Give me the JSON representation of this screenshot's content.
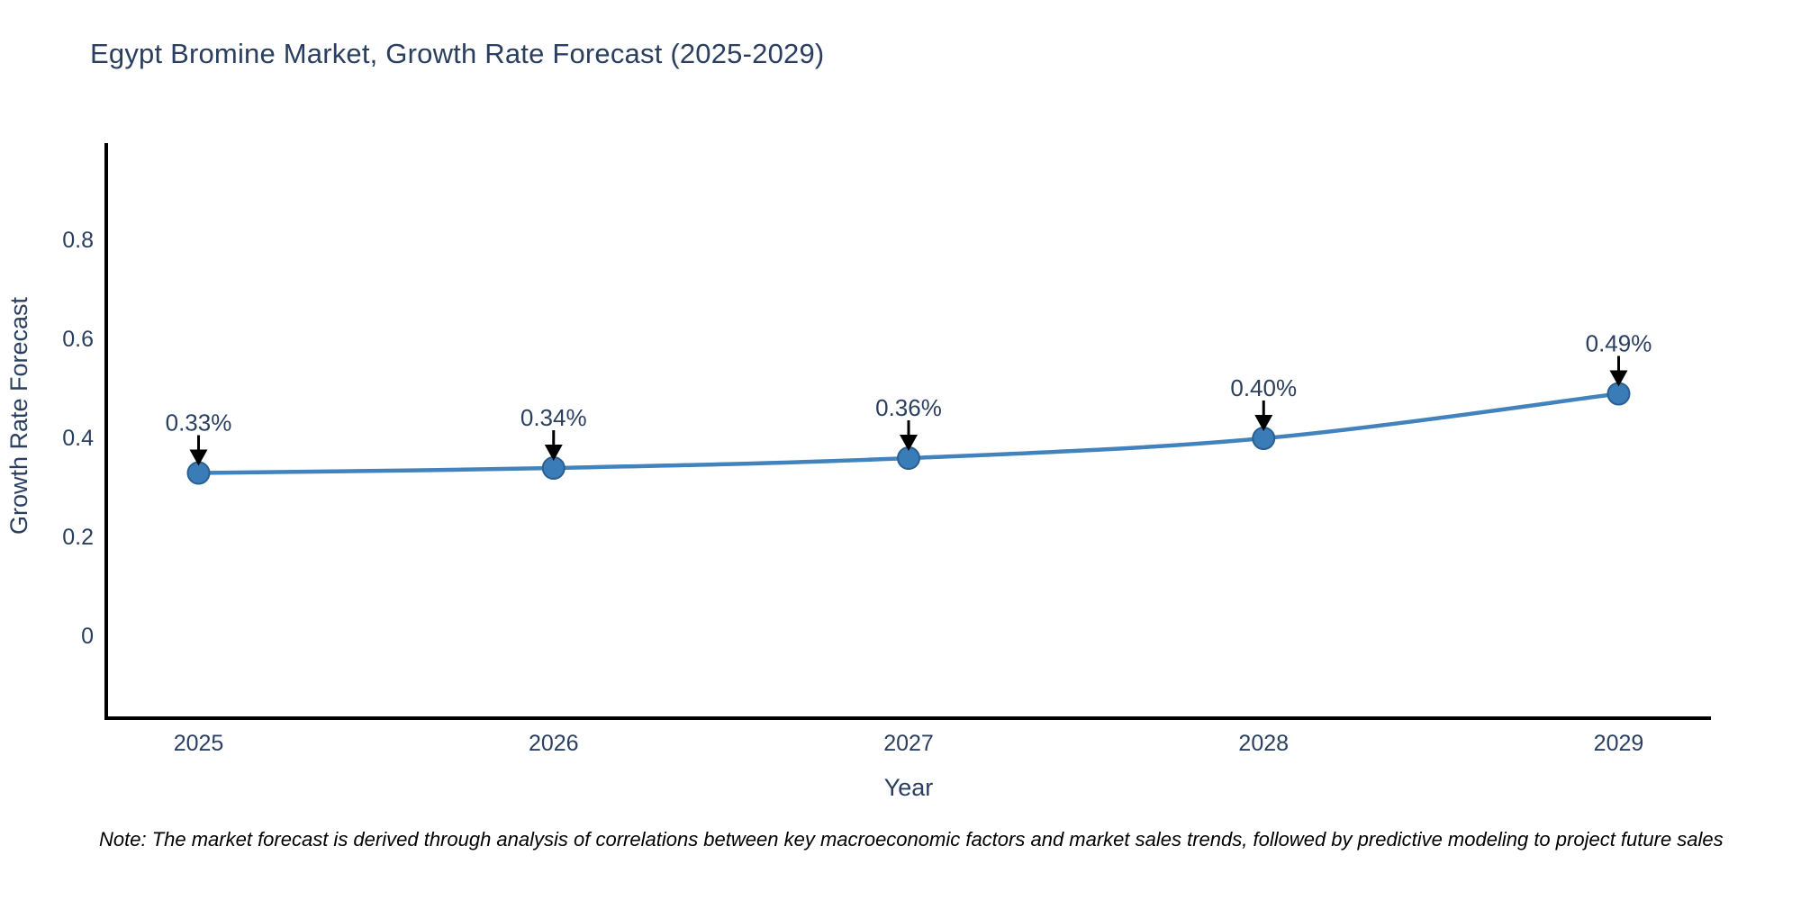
{
  "page": {
    "background": "#ffffff"
  },
  "title": {
    "text": "Egypt Bromine Market, Growth Rate Forecast (2025-2029)",
    "color": "#2a3f5f"
  },
  "note": {
    "text": "Note: The market forecast is derived through analysis of correlations between key macroeconomic factors and market sales trends, followed by predictive modeling to project future sales"
  },
  "chart_data": {
    "type": "line",
    "title": "Egypt Bromine Market, Growth Rate Forecast (2025-2029)",
    "xlabel": "Year",
    "ylabel": "Growth Rate Forecast",
    "x": [
      2025,
      2026,
      2027,
      2028,
      2029
    ],
    "y": [
      0.33,
      0.34,
      0.36,
      0.4,
      0.49
    ],
    "point_labels": [
      "0.33%",
      "0.34%",
      "0.36%",
      "0.40%",
      "0.49%"
    ],
    "x_ticks": {
      "values": [
        2025,
        2026,
        2027,
        2028,
        2029
      ],
      "labels": [
        "2025",
        "2026",
        "2027",
        "2028",
        "2029"
      ]
    },
    "y_ticks": {
      "values": [
        0,
        0.2,
        0.4,
        0.6,
        0.8
      ],
      "labels": [
        "0",
        "0.2",
        "0.4",
        "0.6",
        "0.8"
      ]
    },
    "xlim": [
      2024.74,
      2029.26
    ],
    "ylim": [
      -0.165,
      0.996
    ],
    "grid": false,
    "legend": false,
    "annotations_have_arrows": true,
    "colors": {
      "line": "#4383bd",
      "marker_fill": "#3a7cb8",
      "marker_edge": "#2b5f8e",
      "axis_spine": "#000000",
      "annotation_arrow": "#000000",
      "chart_text": "#2a3f5f",
      "note_text": "#000000"
    }
  }
}
